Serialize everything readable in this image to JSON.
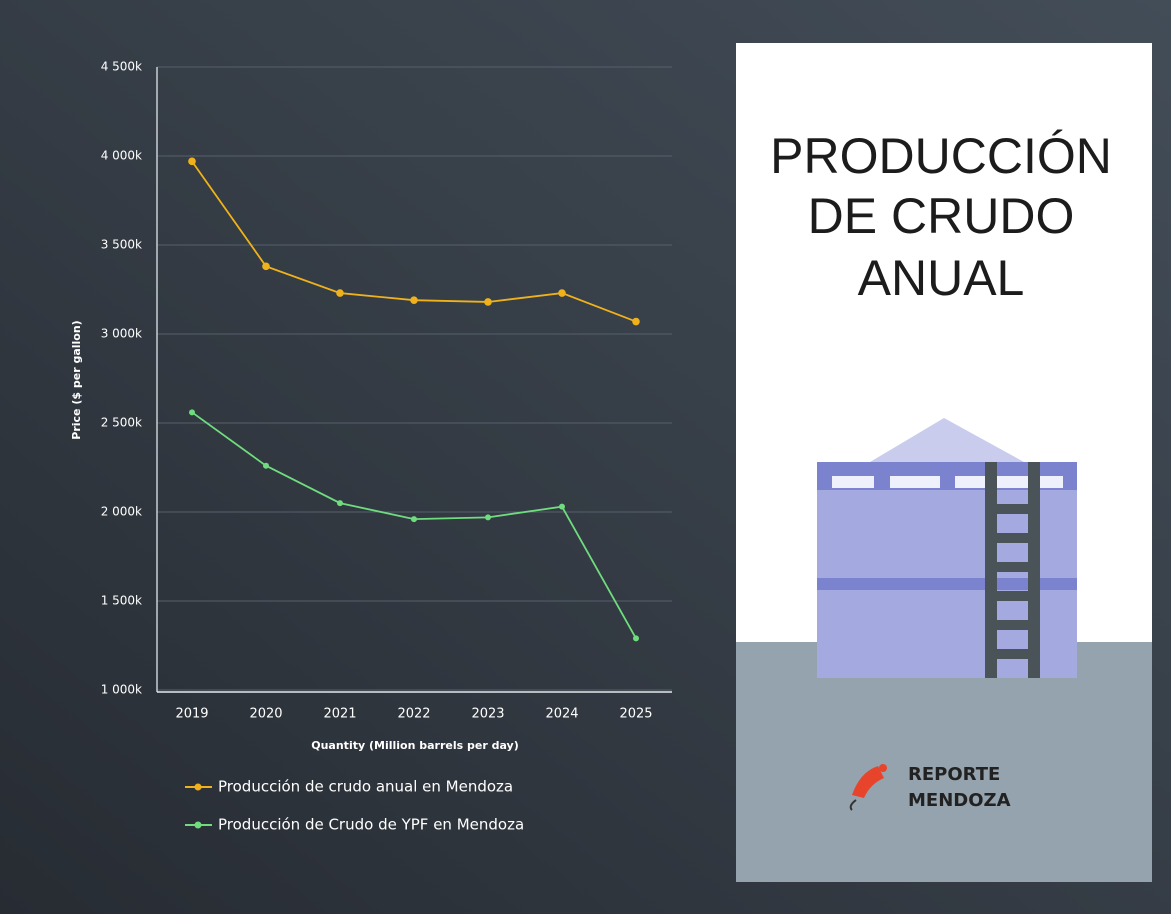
{
  "chart_data": {
    "type": "line",
    "y_label": "Price ($ per gallon)",
    "x_label": "Quantity (Million barrels per day)",
    "categories": [
      "2019",
      "2020",
      "2021",
      "2022",
      "2023",
      "2024",
      "2025"
    ],
    "series": [
      {
        "name": "Producción de crudo anual en Mendoza",
        "color": "#f0b21a",
        "values": [
          3970000,
          3380000,
          3230000,
          3190000,
          3180000,
          3230000,
          3070000
        ]
      },
      {
        "name": "Producción de Crudo de YPF en Mendoza",
        "color": "#6fdc7e",
        "values": [
          2560000,
          2260000,
          2050000,
          1960000,
          1970000,
          2030000,
          1290000
        ]
      }
    ],
    "ylim": [
      1000000,
      4500000
    ],
    "yticks": [
      {
        "value": 1000000,
        "label": "1 000k"
      },
      {
        "value": 1500000,
        "label": "1 500k"
      },
      {
        "value": 2000000,
        "label": "2 000k"
      },
      {
        "value": 2500000,
        "label": "2 500k"
      },
      {
        "value": 3000000,
        "label": "3 000k"
      },
      {
        "value": 3500000,
        "label": "3 500k"
      },
      {
        "value": 4000000,
        "label": "4 000k"
      },
      {
        "value": 4500000,
        "label": "4 500k"
      }
    ],
    "grid": true
  },
  "panel": {
    "title": [
      "PRODUCCIÓN",
      "DE CRUDO",
      "ANUAL"
    ],
    "brand": [
      "REPORTE",
      "MENDOZA"
    ]
  }
}
